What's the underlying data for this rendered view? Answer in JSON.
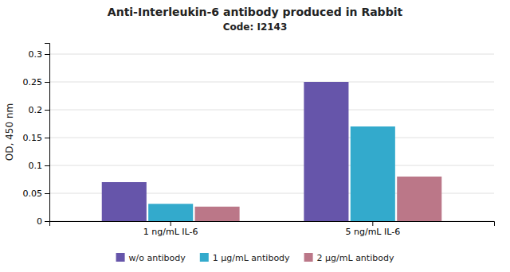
{
  "chart_data": {
    "type": "bar",
    "title": "Anti-Interleukin-6 antibody produced in Rabbit",
    "subtitle": "Code: I2143",
    "categories": [
      "1 ng/mL IL-6",
      "5 ng/mL IL-6"
    ],
    "series": [
      {
        "name": "w/o antibody",
        "color": "#6655aa",
        "values": [
          0.07,
          0.25
        ]
      },
      {
        "name": "1 μg/mL antibody",
        "color": "#33aacc",
        "values": [
          0.031,
          0.17
        ]
      },
      {
        "name": "2 μg/mL antibody",
        "color": "#bb7788",
        "values": [
          0.026,
          0.08
        ]
      }
    ],
    "ylabel": "OD, 450 nm",
    "ylim": [
      0,
      0.32
    ],
    "yticks": [
      0,
      0.05,
      0.1,
      0.15,
      0.2,
      0.25,
      0.3
    ],
    "grid": true,
    "legend": "bottom"
  }
}
